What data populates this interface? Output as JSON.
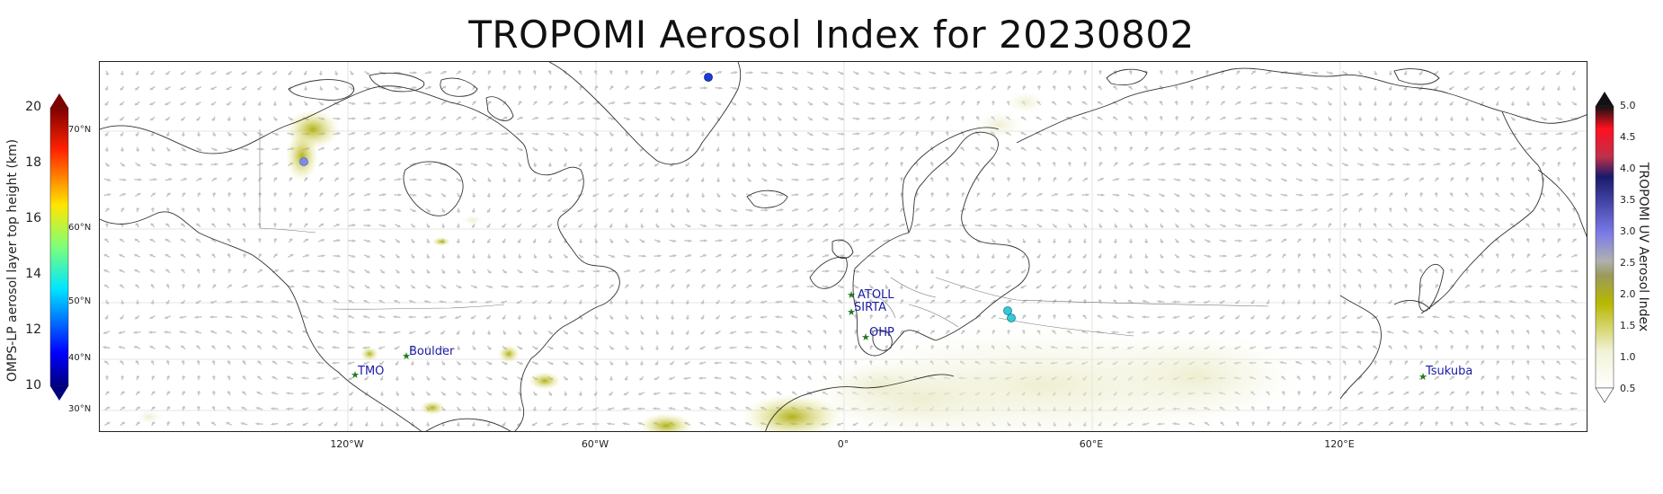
{
  "title": "TROPOMI Aerosol Index for 20230802",
  "lon_ticks": [
    "120°W",
    "60°W",
    "0°",
    "60°E",
    "120°E"
  ],
  "lat_ticks": [
    "70°N",
    "60°N",
    "50°N",
    "40°N",
    "30°N"
  ],
  "left_colorbar": {
    "label": "OMPS-LP aerosol layer top height (km)",
    "ticks": [
      "20",
      "18",
      "16",
      "14",
      "12",
      "10"
    ]
  },
  "right_colorbar": {
    "label": "TROPOMI UV Aerosol Index",
    "ticks": [
      "5.0",
      "4.5",
      "4.0",
      "3.5",
      "3.0",
      "2.5",
      "2.0",
      "1.5",
      "1.0",
      "0.5"
    ]
  },
  "sites": [
    {
      "name": "ATOLL"
    },
    {
      "name": "SIRTA"
    },
    {
      "name": "OHP"
    },
    {
      "name": "Boulder"
    },
    {
      "name": "TMO"
    },
    {
      "name": "Tsukuba"
    }
  ],
  "colors": {
    "site_marker": "#1f7a1f",
    "site_label": "#1a1aa8",
    "coastline": "#333333",
    "wind_arrow": "#bdbdbd",
    "aerosol_low": "#b8b800",
    "omps_high": "#1f3bd6",
    "omps_mid": "#35c9d6"
  }
}
